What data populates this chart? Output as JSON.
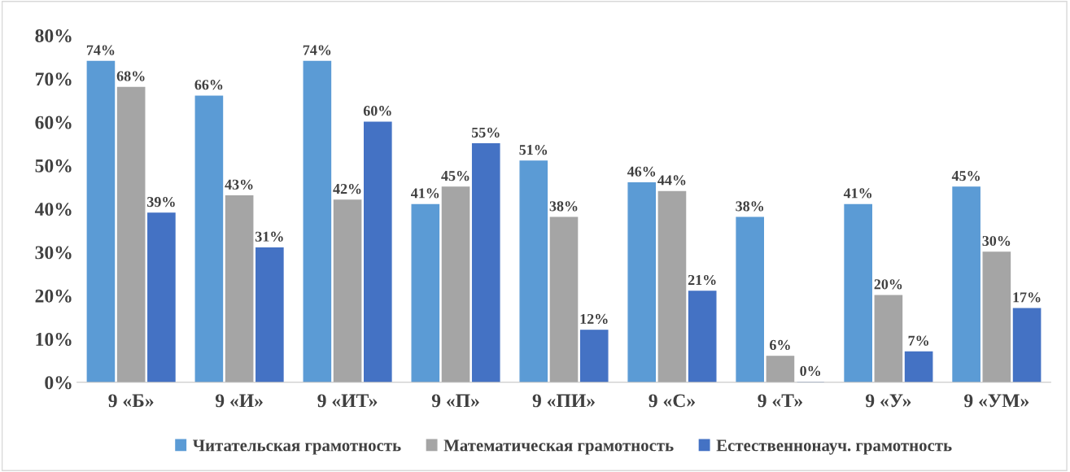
{
  "chart_data": {
    "type": "bar",
    "categories": [
      "9 «Б»",
      "9 «И»",
      "9 «ИТ»",
      "9 «П»",
      "9 «ПИ»",
      "9 «С»",
      "9 «Т»",
      "9 «У»",
      "9 «УМ»"
    ],
    "series": [
      {
        "name": "Читательская грамотность",
        "color": "#5b9bd5",
        "values": [
          74,
          66,
          74,
          41,
          51,
          46,
          38,
          41,
          45
        ],
        "value_labels": [
          "74%",
          "66%",
          "74%",
          "41%",
          "51%",
          "46%",
          "38%",
          "41%",
          "45%"
        ]
      },
      {
        "name": "Математическая грамотность",
        "color": "#a5a5a5",
        "values": [
          68,
          43,
          42,
          45,
          38,
          44,
          6,
          20,
          30
        ],
        "value_labels": [
          "68%",
          "43%",
          "42%",
          "45%",
          "38%",
          "44%",
          "6%",
          "20%",
          "30%"
        ]
      },
      {
        "name": "Естественнонауч. грамотность",
        "color": "#4472c4",
        "values": [
          39,
          31,
          60,
          55,
          12,
          21,
          0,
          7,
          17
        ],
        "value_labels": [
          "39%",
          "31%",
          "60%",
          "55%",
          "12%",
          "21%",
          "0%",
          "7%",
          "17%"
        ]
      }
    ],
    "ylim": [
      0,
      80
    ],
    "yticks": [
      {
        "value": 0,
        "label": "0%"
      },
      {
        "value": 10,
        "label": "10%"
      },
      {
        "value": 20,
        "label": "20%"
      },
      {
        "value": 30,
        "label": "30%"
      },
      {
        "value": 40,
        "label": "40%"
      },
      {
        "value": 50,
        "label": "50%"
      },
      {
        "value": 60,
        "label": "60%"
      },
      {
        "value": 70,
        "label": "70%"
      },
      {
        "value": 80,
        "label": "80%"
      }
    ],
    "grid": false,
    "legend": "bottom"
  }
}
